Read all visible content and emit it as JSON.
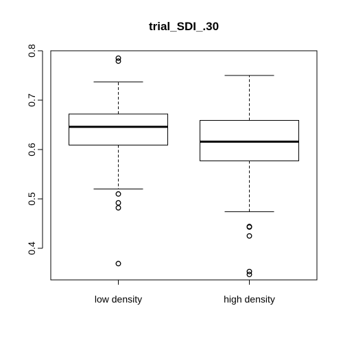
{
  "chart_data": {
    "type": "boxplot",
    "title": "trial_SDI_.30",
    "xlabel": "",
    "ylabel": "",
    "ylim": [
      0.336,
      0.8
    ],
    "y_ticks": [
      0.4,
      0.5,
      0.6,
      0.7,
      0.8
    ],
    "y_tick_labels": [
      "0.4",
      "0.5",
      "0.6",
      "0.7",
      "0.8"
    ],
    "categories": [
      "low density",
      "high density"
    ],
    "boxes": [
      {
        "category": "low density",
        "whisker_low": 0.52,
        "q1": 0.609,
        "median": 0.646,
        "q3": 0.672,
        "whisker_high": 0.737,
        "outliers": [
          0.785,
          0.779,
          0.51,
          0.492,
          0.482,
          0.369
        ]
      },
      {
        "category": "high density",
        "whisker_low": 0.474,
        "q1": 0.577,
        "median": 0.616,
        "q3": 0.659,
        "whisker_high": 0.75,
        "outliers": [
          0.444,
          0.443,
          0.425,
          0.353,
          0.347
        ]
      }
    ],
    "grid": false
  }
}
